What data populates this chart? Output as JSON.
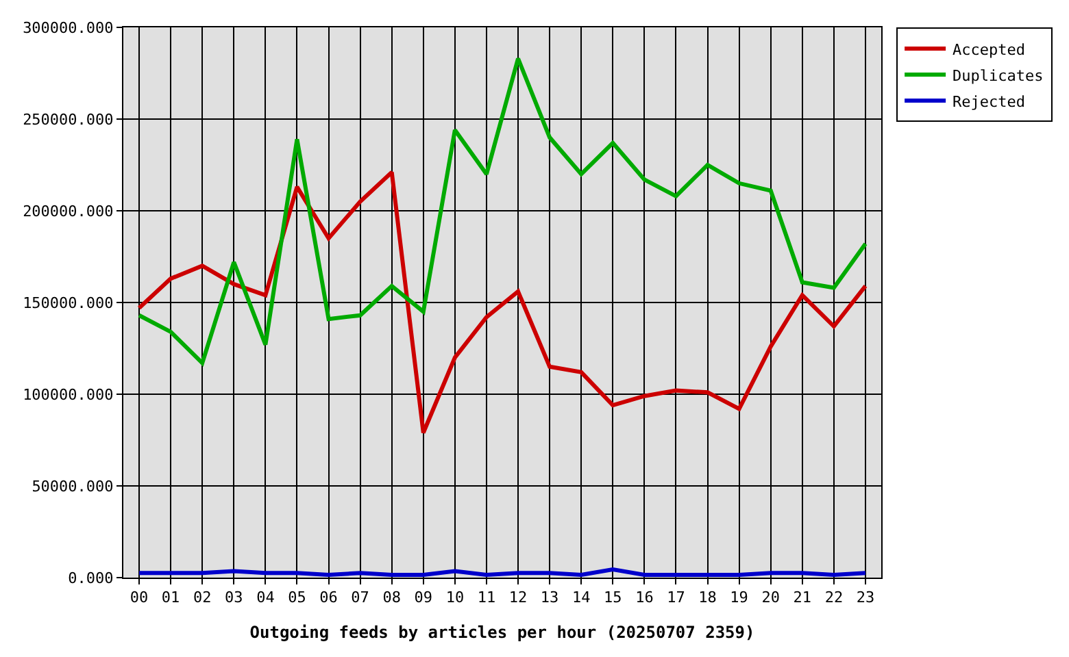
{
  "chart_data": {
    "type": "line",
    "xlabel": "Outgoing feeds by articles per hour (20250707 2359)",
    "categories": [
      "00",
      "01",
      "02",
      "03",
      "04",
      "05",
      "06",
      "07",
      "08",
      "09",
      "10",
      "11",
      "12",
      "13",
      "14",
      "15",
      "16",
      "17",
      "18",
      "19",
      "20",
      "21",
      "22",
      "23"
    ],
    "series": [
      {
        "name": "Accepted",
        "color": "#cc0000",
        "values": [
          147000,
          163000,
          170000,
          160000,
          154000,
          213000,
          185000,
          205000,
          221000,
          79000,
          120000,
          142000,
          156000,
          115000,
          112000,
          94000,
          99000,
          102000,
          101000,
          92000,
          126000,
          154000,
          137000,
          159000
        ]
      },
      {
        "name": "Duplicates",
        "color": "#00aa00",
        "values": [
          143000,
          134000,
          117000,
          172000,
          127000,
          239000,
          141000,
          143000,
          159000,
          145000,
          244000,
          220000,
          283000,
          240000,
          220000,
          237000,
          217000,
          208000,
          225000,
          215000,
          211000,
          161000,
          158000,
          182000
        ]
      },
      {
        "name": "Rejected",
        "color": "#0000cc",
        "values": [
          2500,
          2500,
          2500,
          3500,
          2500,
          2500,
          1500,
          2500,
          1500,
          1500,
          3500,
          1500,
          2500,
          2500,
          1500,
          4500,
          1500,
          1500,
          1500,
          1500,
          2500,
          2500,
          1500,
          2500
        ]
      }
    ],
    "ylim": [
      0,
      300000
    ],
    "yticks": [
      {
        "value": 0,
        "label": "0.000"
      },
      {
        "value": 50000,
        "label": "50000.000"
      },
      {
        "value": 100000,
        "label": "100000.000"
      },
      {
        "value": 150000,
        "label": "150000.000"
      },
      {
        "value": 200000,
        "label": "200000.000"
      },
      {
        "value": 250000,
        "label": "250000.000"
      },
      {
        "value": 300000,
        "label": "300000.000"
      }
    ],
    "grid": true,
    "legend": "top right",
    "line_style": "solid"
  }
}
